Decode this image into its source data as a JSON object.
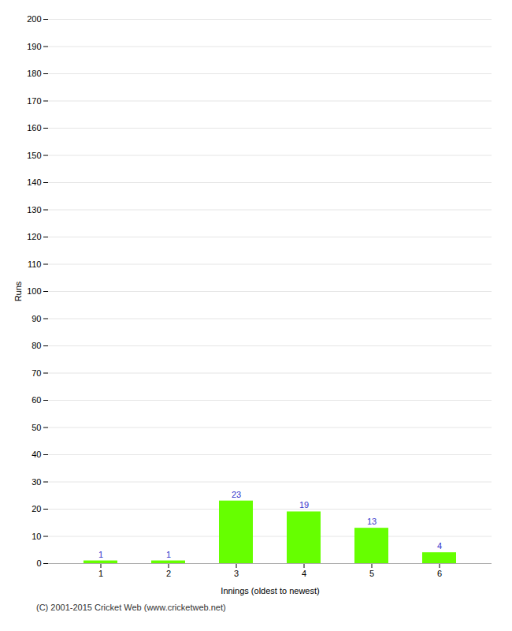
{
  "chart_data": {
    "type": "bar",
    "categories": [
      "1",
      "2",
      "3",
      "4",
      "5",
      "6"
    ],
    "values": [
      1,
      1,
      23,
      19,
      13,
      4
    ],
    "color": "#66ff00",
    "xlabel": "Innings (oldest to newest)",
    "ylabel": "Runs",
    "ylim": [
      0,
      200
    ],
    "yticks": [
      0,
      10,
      20,
      30,
      40,
      50,
      60,
      70,
      80,
      90,
      100,
      110,
      120,
      130,
      140,
      150,
      160,
      170,
      180,
      190,
      200
    ],
    "grid": true,
    "data_labels": true,
    "caption": "(C) 2001-2015 Cricket Web (www.cricketweb.net)"
  }
}
